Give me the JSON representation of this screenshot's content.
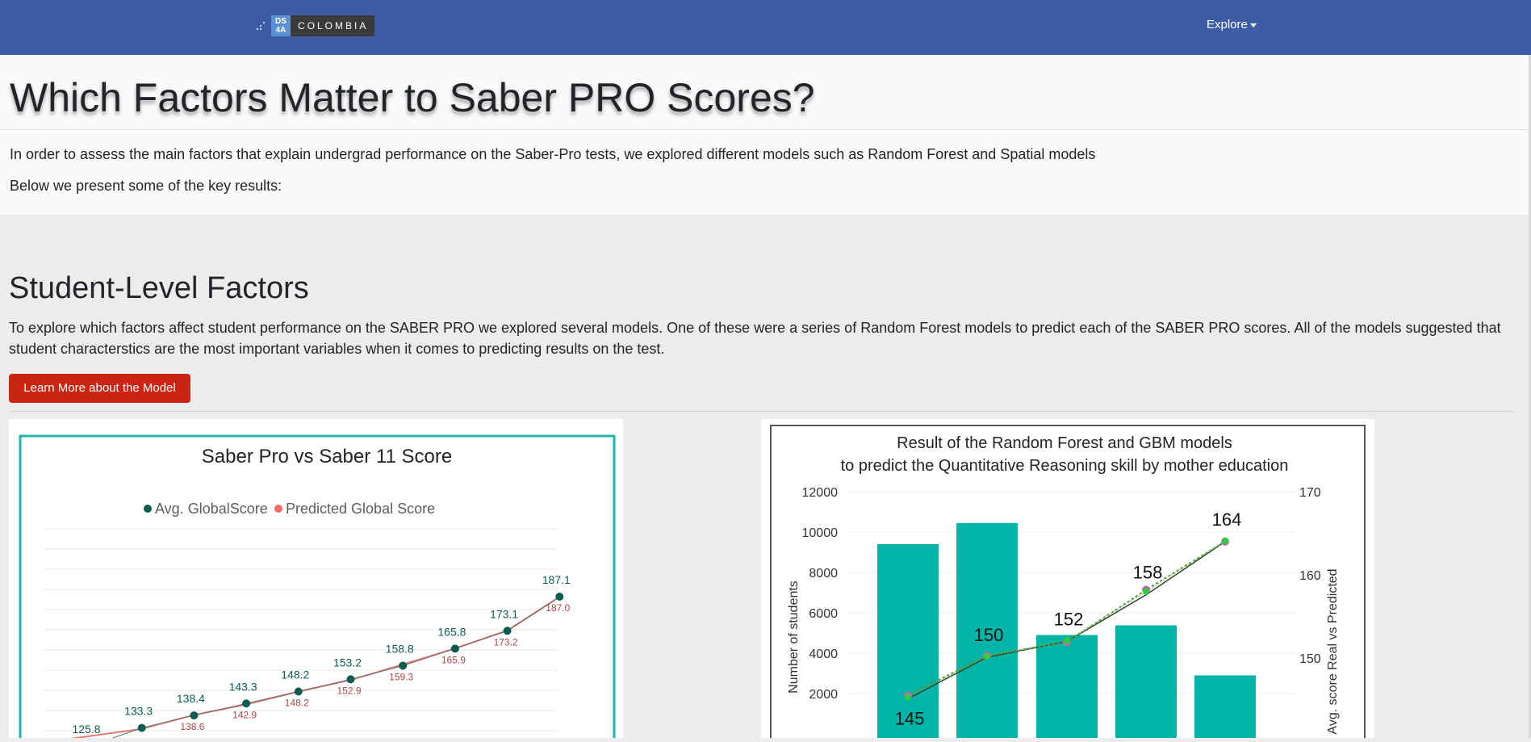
{
  "nav": {
    "logo_box": "DS\n4A",
    "logo_box_line1": "DS",
    "logo_box_line2": "4A",
    "logo_text": "COLOMBIA",
    "explore_label": "Explore"
  },
  "header": {
    "title": "Which Factors Matter to Saber PRO Scores?",
    "intro": "In order to assess the main factors that explain undergrad performance on the Saber-Pro tests, we explored different models such as Random Forest and Spatial models",
    "intro2": "Below we present some of the key results:"
  },
  "student_section": {
    "title": "Student-Level Factors",
    "description": "To explore which factors affect student performance on the SABER PRO we explored several models. One of these were a series of Random Forest models to predict each of the SABER PRO scores. All of the models suggested that student characterstics are the most important variables when it comes to predicting results on the test.",
    "button_label": "Learn More about the Model"
  },
  "colors": {
    "navbar": "#3c5ca5",
    "button": "#cc2412",
    "teal": "#00b4a6",
    "avg_dot": "#0d5c52",
    "predicted_line": "#e07b72"
  },
  "chart_data": [
    {
      "type": "line",
      "title": "Saber Pro vs Saber 11 Score",
      "legend_position": "top",
      "series": [
        {
          "name": "Avg. GlobalScore",
          "values": [
            125.8,
            133.3,
            138.4,
            143.3,
            148.2,
            153.2,
            158.8,
            165.8,
            173.1,
            187.1
          ],
          "labels": [
            "125.8",
            "133.3",
            "138.4",
            "143.3",
            "148.2",
            "153.2",
            "158.8",
            "165.8",
            "173.1",
            "187.1"
          ]
        },
        {
          "name": "Predicted Global Score",
          "values": [
            null,
            132.9,
            138.6,
            142.9,
            148.2,
            152.9,
            159.3,
            165.9,
            173.2,
            187.0
          ],
          "labels": [
            "",
            "",
            "138.6",
            "142.9",
            "148.2",
            "152.9",
            "159.3",
            "165.9",
            "173.2",
            "187.0"
          ]
        }
      ],
      "grid": true
    },
    {
      "type": "bar",
      "title": "Result of the Random Forest and GBM models",
      "subtitle": "to predict the Quantitative Reasoning skill by mother education",
      "ylabel": "Number of students",
      "y2label": "Avg. score Real vs Predicted",
      "yticks": [
        "12000",
        "10000",
        "8000",
        "6000",
        "4000",
        "2000"
      ],
      "y2ticks": [
        "170",
        "160",
        "150"
      ],
      "ylim": [
        0,
        12000
      ],
      "y2lim": [
        140,
        170
      ],
      "bars": [
        9400,
        10450,
        4900,
        5380,
        2900
      ],
      "lines": [
        {
          "values": [
            145.1,
            150.1,
            152.0,
            157.6,
            164.0
          ]
        },
        {
          "values": [
            145.5,
            150.3,
            151.9,
            158.2,
            164.0
          ]
        },
        {
          "values": [
            145.3,
            150.2,
            152.1,
            158.0,
            164.1
          ]
        }
      ],
      "point_labels": [
        "145",
        "150",
        "152",
        "158",
        "164"
      ]
    }
  ]
}
